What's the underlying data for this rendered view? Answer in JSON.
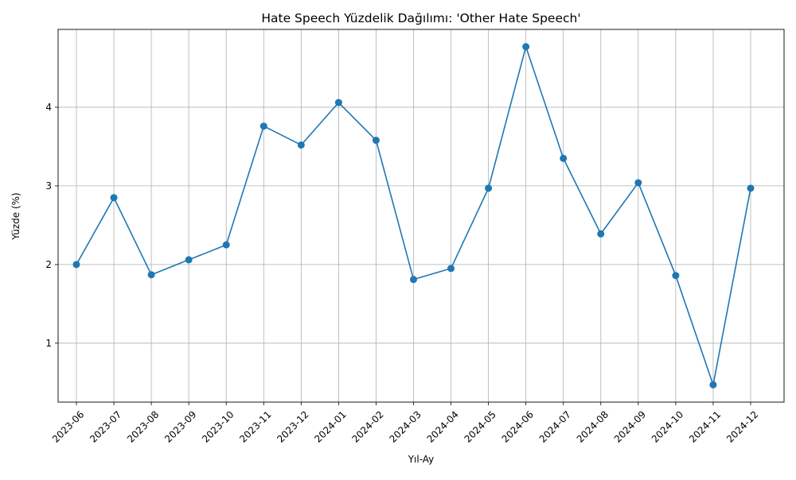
{
  "chart_data": {
    "type": "line",
    "title": "Hate Speech Yüzdelik Dağılımı: 'Other Hate Speech'",
    "xlabel": "Yıl-Ay",
    "ylabel": "Yüzde (%)",
    "categories": [
      "2023-06",
      "2023-07",
      "2023-08",
      "2023-09",
      "2023-10",
      "2023-11",
      "2023-12",
      "2024-01",
      "2024-02",
      "2024-03",
      "2024-04",
      "2024-05",
      "2024-06",
      "2024-07",
      "2024-08",
      "2024-09",
      "2024-10",
      "2024-11",
      "2024-12"
    ],
    "values": [
      2.0,
      2.85,
      1.87,
      2.06,
      2.25,
      3.76,
      3.52,
      4.06,
      3.58,
      1.81,
      1.95,
      2.97,
      4.77,
      3.35,
      2.39,
      3.04,
      1.86,
      0.47,
      2.97
    ],
    "yticks": [
      1,
      2,
      3,
      4
    ],
    "ylim": [
      0.25,
      4.99
    ],
    "grid": true,
    "line_color": "#1f77b4"
  }
}
